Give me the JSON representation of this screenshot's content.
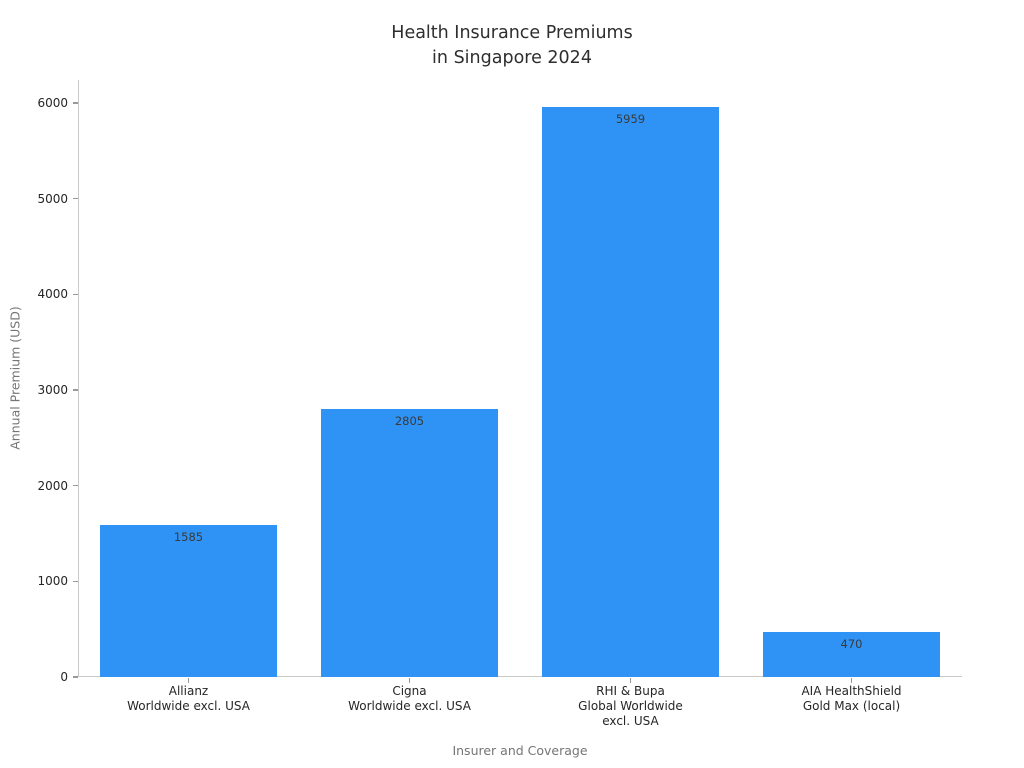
{
  "chart_data": {
    "type": "bar",
    "title": "Health Insurance Premiums\nin Singapore 2024",
    "categories": [
      [
        "Allianz",
        "Worldwide excl. USA"
      ],
      [
        "Cigna",
        "Worldwide excl. USA"
      ],
      [
        "RHI & Bupa",
        "Global Worldwide",
        "excl. USA"
      ],
      [
        "AIA HealthShield",
        "Gold Max (local)"
      ]
    ],
    "values": [
      1585,
      2805,
      5959,
      470
    ],
    "value_labels": [
      "1585",
      "2805",
      "5959",
      "470"
    ],
    "xlabel": "Insurer and Coverage",
    "ylabel": "Annual Premium (USD)",
    "ylim": [
      0,
      6240
    ],
    "yticks": [
      0,
      1000,
      2000,
      3000,
      4000,
      5000,
      6000
    ],
    "grid": false,
    "legend": "none",
    "colors": {
      "bar": "#2E93F5",
      "value_label": "#3a3a3a",
      "tick_label": "#262626",
      "axis_label": "#757575",
      "spine": "#c9c9c9",
      "background": "#ffffff"
    }
  }
}
